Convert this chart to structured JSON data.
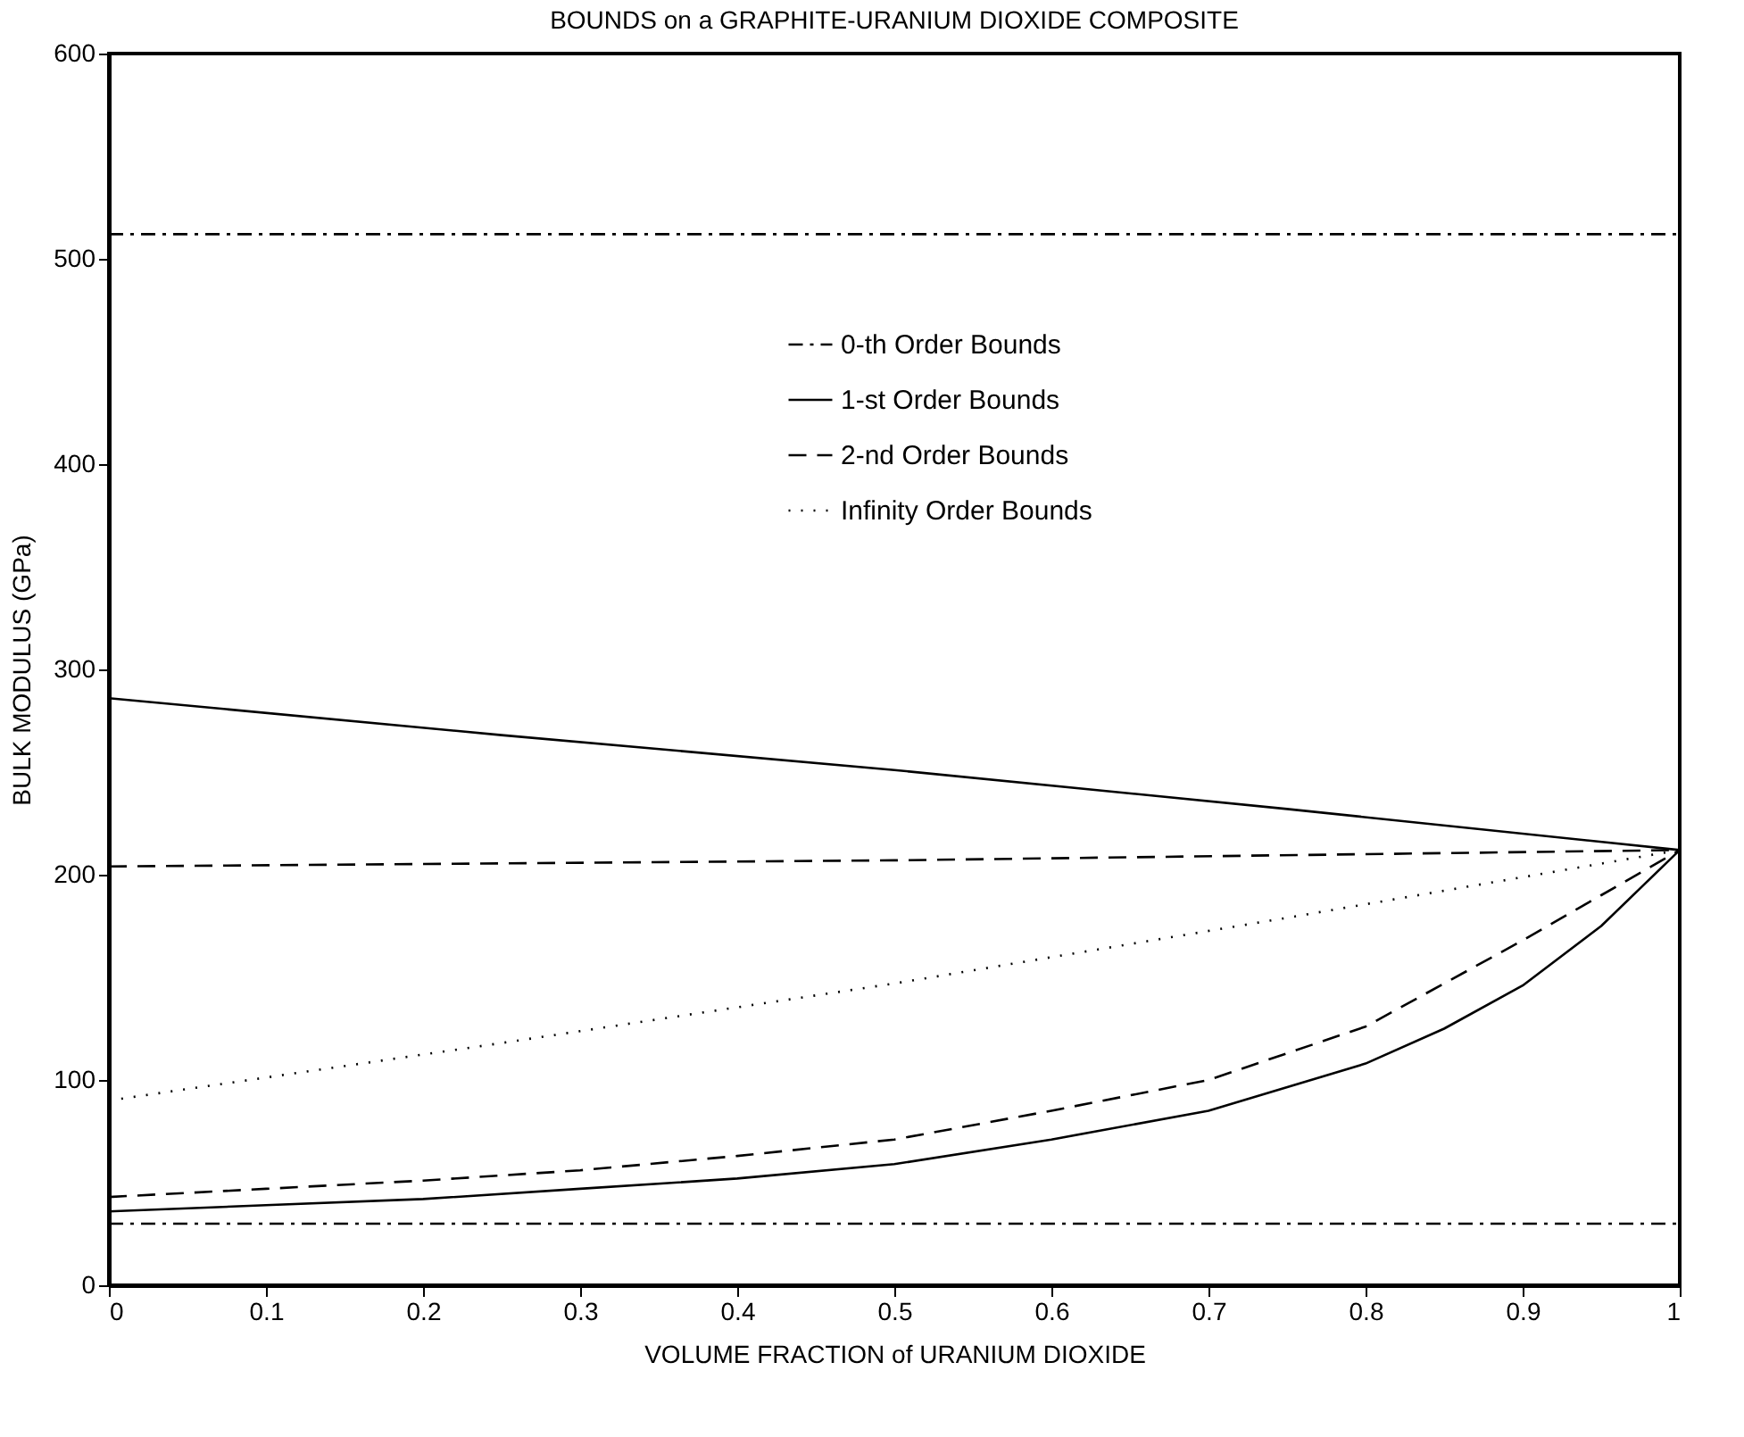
{
  "chart_data": {
    "type": "line",
    "title": "BOUNDS on a GRAPHITE-URANIUM DIOXIDE COMPOSITE",
    "xlabel": "VOLUME FRACTION of URANIUM DIOXIDE",
    "ylabel": "BULK MODULUS (GPa)",
    "xlim": [
      0,
      1
    ],
    "ylim": [
      0,
      600
    ],
    "xticks": [
      0,
      0.1,
      0.2,
      0.3,
      0.4,
      0.5,
      0.6,
      0.7,
      0.8,
      0.9,
      1
    ],
    "yticks": [
      0,
      100,
      200,
      300,
      400,
      500,
      600
    ],
    "grid": false,
    "legend": "top",
    "marker": "none",
    "series": [
      {
        "name": "0-th Order Bounds",
        "color": "#000000",
        "line_style": "dashdot",
        "x": [
          0,
          1
        ],
        "values": [
          512,
          512
        ]
      },
      {
        "color": "#000000",
        "line_style": "dashdot",
        "x": [
          0,
          1
        ],
        "values": [
          30,
          30
        ]
      },
      {
        "name": "1-st Order Bounds",
        "color": "#000000",
        "line_style": "solid",
        "x": [
          0,
          0.25,
          0.5,
          0.75,
          1
        ],
        "values": [
          286,
          268,
          251,
          232,
          212
        ]
      },
      {
        "color": "#000000",
        "line_style": "solid",
        "x": [
          0,
          0.1,
          0.2,
          0.3,
          0.4,
          0.5,
          0.6,
          0.7,
          0.8,
          0.85,
          0.9,
          0.95,
          1
        ],
        "values": [
          36,
          39,
          42,
          47,
          52,
          59,
          71,
          85,
          108,
          125,
          146,
          175,
          212
        ]
      },
      {
        "name": "2-nd Order Bounds",
        "color": "#000000",
        "line_style": "dashed",
        "x": [
          0,
          0.5,
          1
        ],
        "values": [
          204,
          207,
          212
        ]
      },
      {
        "color": "#000000",
        "line_style": "dashed",
        "x": [
          0,
          0.1,
          0.2,
          0.3,
          0.4,
          0.5,
          0.6,
          0.7,
          0.8,
          0.9,
          0.95,
          1
        ],
        "values": [
          43,
          47,
          51,
          56,
          63,
          71,
          85,
          100,
          126,
          168,
          190,
          212
        ]
      },
      {
        "name": "Infinity Order Bounds",
        "color": "#000000",
        "line_style": "dotted",
        "x": [
          0,
          0.25,
          0.5,
          0.75,
          1
        ],
        "values": [
          90,
          118,
          147,
          179,
          212
        ]
      }
    ]
  }
}
